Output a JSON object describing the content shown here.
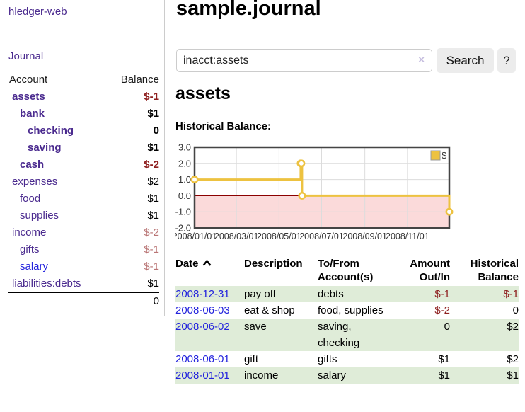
{
  "app": {
    "brand": "hledger-web"
  },
  "colors": {
    "purple": "#4b2b8f",
    "link-blue": "#2323dd",
    "negative": "#8e1f1f",
    "negative-muted": "#b97575",
    "row-green": "#dfecd8",
    "chart-line": "#edc240",
    "chart-negative-region": "#fbdada",
    "chart-zero-line": "#8b0000"
  },
  "sidebar": {
    "journal_label": "Journal",
    "accounts_table": {
      "headers": [
        "Account",
        "Balance"
      ],
      "rows": [
        {
          "account": "assets",
          "balance": "$-1",
          "depth": 0,
          "bold": true,
          "tone": "neg"
        },
        {
          "account": "bank",
          "balance": "$1",
          "depth": 1,
          "bold": true,
          "tone": ""
        },
        {
          "account": "checking",
          "balance": "0",
          "depth": 2,
          "bold": true,
          "tone": ""
        },
        {
          "account": "saving",
          "balance": "$1",
          "depth": 2,
          "bold": true,
          "tone": ""
        },
        {
          "account": "cash",
          "balance": "$-2",
          "depth": 1,
          "bold": true,
          "tone": "neg"
        },
        {
          "account": "expenses",
          "balance": "$2",
          "depth": 0,
          "bold": false,
          "tone": ""
        },
        {
          "account": "food",
          "balance": "$1",
          "depth": 1,
          "bold": false,
          "tone": ""
        },
        {
          "account": "supplies",
          "balance": "$1",
          "depth": 1,
          "bold": false,
          "tone": ""
        },
        {
          "account": "income",
          "balance": "$-2",
          "depth": 0,
          "bold": false,
          "tone": "muted"
        },
        {
          "account": "gifts",
          "balance": "$-1",
          "depth": 1,
          "bold": false,
          "tone": "muted"
        },
        {
          "account": "salary",
          "balance": "$-1",
          "depth": 1,
          "bold": false,
          "tone": "muted",
          "link": "blue"
        },
        {
          "account": "liabilities:debts",
          "balance": "$1",
          "depth": 0,
          "bold": false,
          "tone": ""
        }
      ],
      "total": "0"
    }
  },
  "header": {
    "title": "sample.journal"
  },
  "search": {
    "value": "inacct:assets",
    "clear_icon": "×",
    "button_label": "Search",
    "help_label": "?"
  },
  "main": {
    "account_heading": "assets",
    "chart_label": "Historical Balance:"
  },
  "chart_data": {
    "type": "line",
    "title": "Historical Balance",
    "step": true,
    "series": [
      {
        "name": "$",
        "points": [
          {
            "date": "2008-01-01",
            "value": 1
          },
          {
            "date": "2008-06-01",
            "value": 2
          },
          {
            "date": "2008-06-02",
            "value": 2
          },
          {
            "date": "2008-06-03",
            "value": 0
          },
          {
            "date": "2008-12-31",
            "value": -1
          }
        ]
      }
    ],
    "x_ticks": [
      "2008/01/01",
      "2008/03/01",
      "2008/05/01",
      "2008/07/01",
      "2008/09/01",
      "2008/11/01"
    ],
    "y_ticks": [
      3.0,
      2.0,
      1.0,
      0.0,
      -1.0,
      -2.0
    ],
    "xlim": [
      "2008-01-01",
      "2008-12-31"
    ],
    "ylim": [
      -2,
      3
    ],
    "grid": true,
    "legend_position": "top-right",
    "negative_region_shaded": true
  },
  "register_table": {
    "headers": [
      {
        "lines": "Date",
        "align": "l",
        "sortable": true
      },
      {
        "lines": "Description",
        "align": "l"
      },
      {
        "lines": "To/From\nAccount(s)",
        "align": "l"
      },
      {
        "lines": "Amount\nOut/In",
        "align": "r"
      },
      {
        "lines": "Historical\nBalance",
        "align": "r"
      }
    ],
    "rows": [
      {
        "date": "2008-12-31",
        "description": "pay off",
        "accounts": "debts",
        "amount": "$-1",
        "amount_tone": "neg",
        "balance": "$-1",
        "balance_tone": "neg",
        "green": true
      },
      {
        "date": "2008-06-03",
        "description": "eat & shop",
        "accounts": "food, supplies",
        "amount": "$-2",
        "amount_tone": "neg",
        "balance": "0",
        "balance_tone": "",
        "green": false
      },
      {
        "date": "2008-06-02",
        "description": "save",
        "accounts": "saving,\nchecking",
        "amount": "0",
        "amount_tone": "",
        "balance": "$2",
        "balance_tone": "",
        "green": true
      },
      {
        "date": "2008-06-01",
        "description": "gift",
        "accounts": "gifts",
        "amount": "$1",
        "amount_tone": "",
        "balance": "$2",
        "balance_tone": "",
        "green": false
      },
      {
        "date": "2008-01-01",
        "description": "income",
        "accounts": "salary",
        "amount": "$1",
        "amount_tone": "",
        "balance": "$1",
        "balance_tone": "",
        "green": true
      }
    ]
  }
}
